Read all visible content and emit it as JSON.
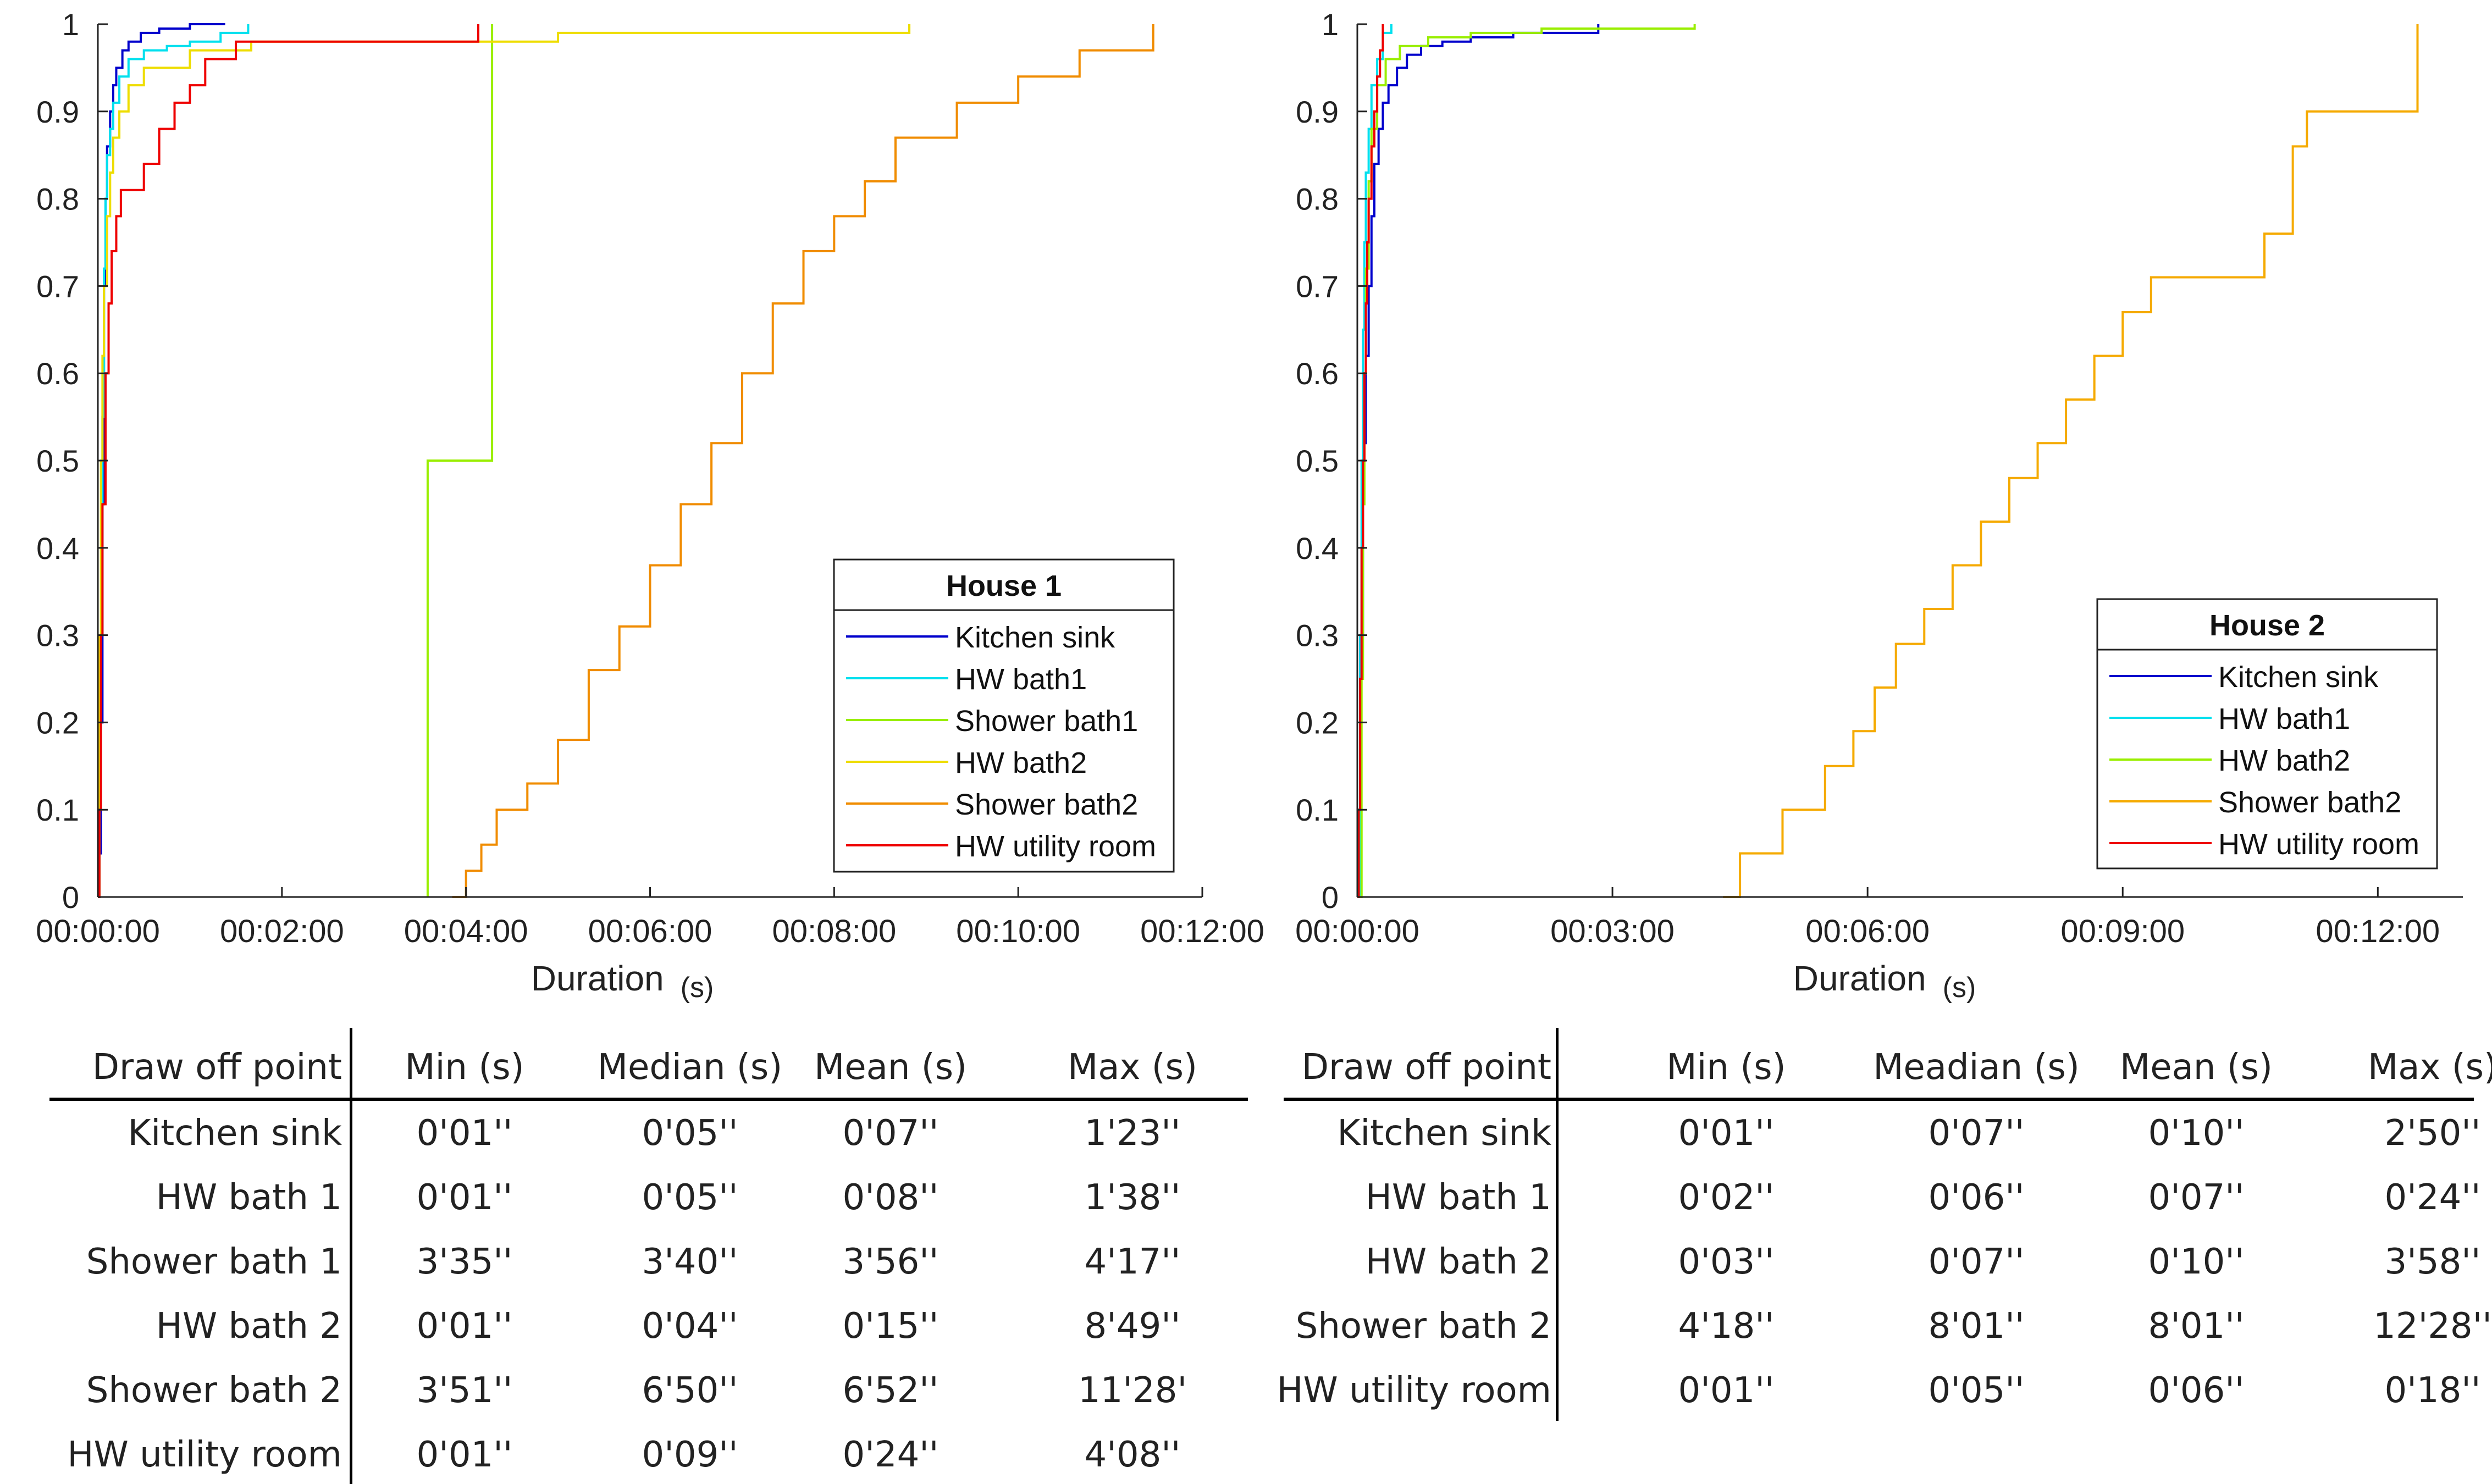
{
  "chart_data": [
    {
      "type": "line",
      "subtype": "empirical-cdf",
      "title": "House 1",
      "xlabel": "Duration",
      "xlabel_unit": "(s)",
      "ylabel": "",
      "xlim": [
        0,
        720
      ],
      "ylim": [
        0,
        1
      ],
      "xticks": [
        0,
        120,
        240,
        360,
        480,
        600,
        720
      ],
      "xtick_labels": [
        "00:00:00",
        "00:02:00",
        "00:04:00",
        "00:06:00",
        "00:08:00",
        "00:10:00",
        "00:12:00"
      ],
      "yticks": [
        0,
        0.1,
        0.2,
        0.3,
        0.4,
        0.5,
        0.6,
        0.7,
        0.8,
        0.9,
        1
      ],
      "ytick_labels": [
        "0",
        "0.1",
        "0.2",
        "0.3",
        "0.4",
        "0.5",
        "0.6",
        "0.7",
        "0.8",
        "0.9",
        "1"
      ],
      "legend_title": "House 1",
      "legend_position": "lower-right",
      "series": [
        {
          "name": "Kitchen sink",
          "color": "#0000cc",
          "x": [
            0,
            1,
            2,
            3,
            4,
            5,
            6,
            8,
            10,
            12,
            16,
            20,
            28,
            40,
            60,
            83
          ],
          "y": [
            0,
            0.05,
            0.2,
            0.45,
            0.7,
            0.8,
            0.86,
            0.9,
            0.93,
            0.95,
            0.97,
            0.98,
            0.99,
            0.995,
            1,
            1
          ]
        },
        {
          "name": "HW bath1",
          "color": "#00e0ee",
          "x": [
            0,
            1,
            2,
            3,
            4,
            5,
            6,
            8,
            10,
            14,
            20,
            30,
            45,
            60,
            80,
            98
          ],
          "y": [
            0,
            0.1,
            0.3,
            0.55,
            0.72,
            0.8,
            0.85,
            0.88,
            0.91,
            0.94,
            0.96,
            0.97,
            0.975,
            0.98,
            0.99,
            1
          ]
        },
        {
          "name": "Shower bath1",
          "color": "#99ee00",
          "x": [
            215,
            215,
            220,
            220,
            257,
            257
          ],
          "y": [
            0,
            0.5,
            0.5,
            0.5,
            0.5,
            1
          ]
        },
        {
          "name": "HW bath2",
          "color": "#eedd00",
          "x": [
            0,
            1,
            2,
            3,
            4,
            6,
            8,
            10,
            14,
            20,
            30,
            60,
            100,
            200,
            300,
            529
          ],
          "y": [
            0,
            0.3,
            0.5,
            0.62,
            0.7,
            0.78,
            0.83,
            0.87,
            0.9,
            0.93,
            0.95,
            0.97,
            0.98,
            0.98,
            0.99,
            1
          ]
        },
        {
          "name": "Shower bath2",
          "color": "#f08c00",
          "x": [
            231,
            240,
            250,
            260,
            280,
            300,
            320,
            340,
            360,
            380,
            400,
            420,
            440,
            460,
            480,
            500,
            520,
            560,
            600,
            640,
            688
          ],
          "y": [
            0,
            0.03,
            0.06,
            0.1,
            0.13,
            0.18,
            0.26,
            0.31,
            0.38,
            0.45,
            0.52,
            0.6,
            0.68,
            0.74,
            0.78,
            0.82,
            0.87,
            0.91,
            0.94,
            0.97,
            1
          ]
        },
        {
          "name": "HW utility room",
          "color": "#ee0000",
          "x": [
            0,
            1,
            2,
            3,
            5,
            7,
            9,
            12,
            15,
            20,
            30,
            40,
            50,
            60,
            70,
            90,
            248
          ],
          "y": [
            0,
            0.1,
            0.3,
            0.45,
            0.6,
            0.68,
            0.74,
            0.78,
            0.81,
            0.81,
            0.84,
            0.88,
            0.91,
            0.93,
            0.96,
            0.98,
            1
          ]
        }
      ],
      "table": {
        "headers": [
          "Draw off point",
          "Min (s)",
          "Median (s)",
          "Mean (s)",
          "Max (s)"
        ],
        "rows": [
          [
            "Kitchen sink",
            "0'01''",
            "0'05''",
            "0'07''",
            "1'23''"
          ],
          [
            "HW bath 1",
            "0'01''",
            "0'05''",
            "0'08''",
            "1'38''"
          ],
          [
            "Shower bath 1",
            "3'35''",
            "3'40''",
            "3'56''",
            "4'17''"
          ],
          [
            "HW bath 2",
            "0'01''",
            "0'04''",
            "0'15''",
            "8'49''"
          ],
          [
            "Shower bath 2",
            "3'51''",
            "6'50''",
            "6'52''",
            "11'28'"
          ],
          [
            "HW utility room",
            "0'01''",
            "0'09''",
            "0'24''",
            "4'08''"
          ]
        ]
      }
    },
    {
      "type": "line",
      "subtype": "empirical-cdf",
      "title": "House 2",
      "xlabel": "Duration",
      "xlabel_unit": "(s)",
      "ylabel": "",
      "xlim": [
        0,
        780
      ],
      "ylim": [
        0,
        1
      ],
      "xticks": [
        0,
        180,
        360,
        540,
        720
      ],
      "xtick_labels": [
        "00:00:00",
        "00:03:00",
        "00:06:00",
        "00:09:00",
        "00:12:00"
      ],
      "yticks": [
        0,
        0.1,
        0.2,
        0.3,
        0.4,
        0.5,
        0.6,
        0.7,
        0.8,
        0.9,
        1
      ],
      "ytick_labels": [
        "0",
        "0.1",
        "0.2",
        "0.3",
        "0.4",
        "0.5",
        "0.6",
        "0.7",
        "0.8",
        "0.9",
        "1"
      ],
      "legend_title": "House 2",
      "legend_position": "lower-right",
      "series": [
        {
          "name": "Kitchen sink",
          "color": "#0000cc",
          "x": [
            0,
            1,
            2,
            4,
            6,
            8,
            10,
            12,
            15,
            18,
            22,
            28,
            35,
            45,
            60,
            80,
            110,
            170
          ],
          "y": [
            0,
            0.1,
            0.3,
            0.52,
            0.62,
            0.7,
            0.78,
            0.84,
            0.88,
            0.91,
            0.93,
            0.95,
            0.965,
            0.975,
            0.98,
            0.985,
            0.99,
            1
          ]
        },
        {
          "name": "HW bath1",
          "color": "#00e0ee",
          "x": [
            0,
            2,
            3,
            4,
            5,
            6,
            8,
            10,
            14,
            18,
            24
          ],
          "y": [
            0,
            0.3,
            0.5,
            0.65,
            0.75,
            0.83,
            0.88,
            0.93,
            0.96,
            0.99,
            1
          ]
        },
        {
          "name": "HW bath2",
          "color": "#99ee00",
          "x": [
            0,
            3,
            4,
            5,
            6,
            8,
            10,
            14,
            20,
            30,
            50,
            80,
            130,
            238
          ],
          "y": [
            0,
            0.25,
            0.45,
            0.6,
            0.72,
            0.82,
            0.88,
            0.93,
            0.96,
            0.975,
            0.985,
            0.99,
            0.995,
            1
          ]
        },
        {
          "name": "Shower bath2",
          "color": "#f5aa00",
          "x": [
            258,
            270,
            300,
            330,
            350,
            365,
            380,
            400,
            420,
            440,
            460,
            480,
            500,
            520,
            540,
            560,
            600,
            640,
            660,
            670,
            748
          ],
          "y": [
            0,
            0.05,
            0.1,
            0.15,
            0.19,
            0.24,
            0.29,
            0.33,
            0.38,
            0.43,
            0.48,
            0.52,
            0.57,
            0.62,
            0.67,
            0.71,
            0.71,
            0.76,
            0.86,
            0.9,
            1
          ]
        },
        {
          "name": "HW utility room",
          "color": "#ee0000",
          "x": [
            0,
            1,
            2,
            3,
            4,
            5,
            6,
            7,
            8,
            10,
            12,
            14,
            16,
            18
          ],
          "y": [
            0,
            0.1,
            0.25,
            0.4,
            0.5,
            0.6,
            0.68,
            0.75,
            0.8,
            0.86,
            0.9,
            0.94,
            0.97,
            1
          ]
        }
      ],
      "table": {
        "headers": [
          "Draw off point",
          "Min (s)",
          "Meadian (s)",
          "Mean (s)",
          "Max (s)"
        ],
        "rows": [
          [
            "Kitchen sink",
            "0'01''",
            "0'07''",
            "0'10''",
            "2'50''"
          ],
          [
            "HW bath 1",
            "0'02''",
            "0'06''",
            "0'07''",
            "0'24''"
          ],
          [
            "HW bath 2",
            "0'03''",
            "0'07''",
            "0'10''",
            "3'58''"
          ],
          [
            "Shower bath 2",
            "4'18''",
            "8'01''",
            "8'01''",
            "12'28''"
          ],
          [
            "HW utility room",
            "0'01''",
            "0'05''",
            "0'06''",
            "0'18''"
          ]
        ]
      }
    }
  ]
}
